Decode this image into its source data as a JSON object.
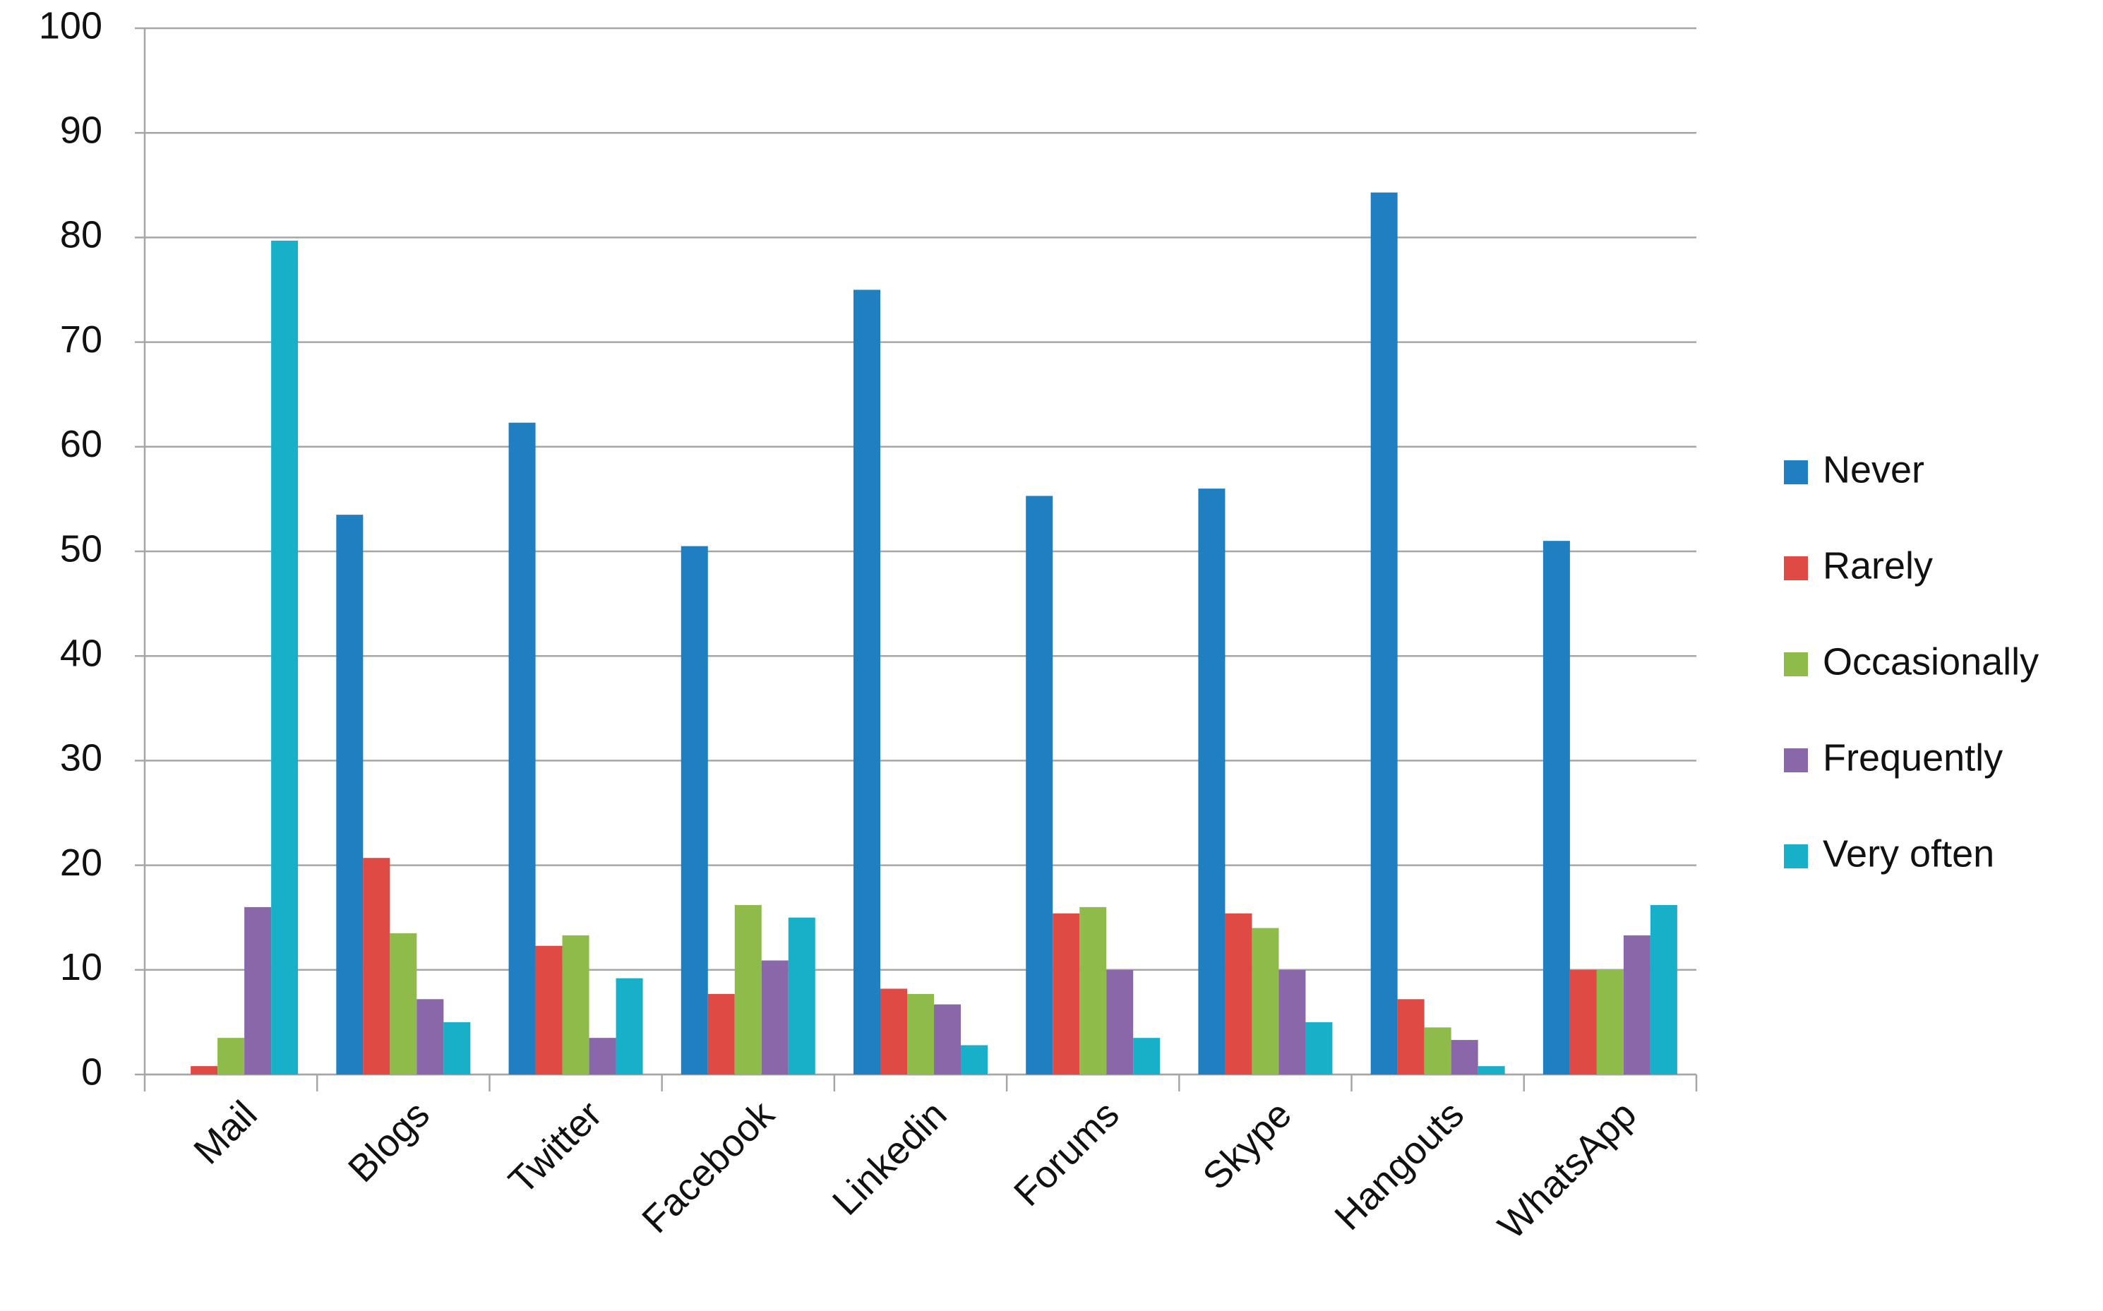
{
  "chart_data": {
    "type": "bar",
    "categories": [
      "Mail",
      "Blogs",
      "Twitter",
      "Facebook",
      "Linkedin",
      "Forums",
      "Skype",
      "Hangouts",
      "WhatsApp"
    ],
    "series": [
      {
        "name": "Never",
        "color": "#1f7fc1",
        "values": [
          0,
          53.5,
          62.3,
          50.5,
          75,
          55.3,
          56,
          84.3,
          51
        ]
      },
      {
        "name": "Rarely",
        "color": "#e04a45",
        "values": [
          0.8,
          20.7,
          12.3,
          7.7,
          8.2,
          15.4,
          15.4,
          7.2,
          10
        ]
      },
      {
        "name": "Occasionally",
        "color": "#8fbb4b",
        "values": [
          3.5,
          13.5,
          13.3,
          16.2,
          7.7,
          16,
          14,
          4.5,
          10
        ]
      },
      {
        "name": "Frequently",
        "color": "#8a67a9",
        "values": [
          16,
          7.2,
          3.5,
          10.9,
          6.7,
          10,
          10,
          3.3,
          13.3
        ]
      },
      {
        "name": "Very often",
        "color": "#17b0c8",
        "values": [
          79.7,
          5,
          9.2,
          15,
          2.8,
          3.5,
          5,
          0.8,
          16.2
        ]
      }
    ],
    "ylim": [
      0,
      100
    ],
    "yticks": [
      0,
      10,
      20,
      30,
      40,
      50,
      60,
      70,
      80,
      90,
      100
    ],
    "grid": true,
    "legend": "right"
  }
}
